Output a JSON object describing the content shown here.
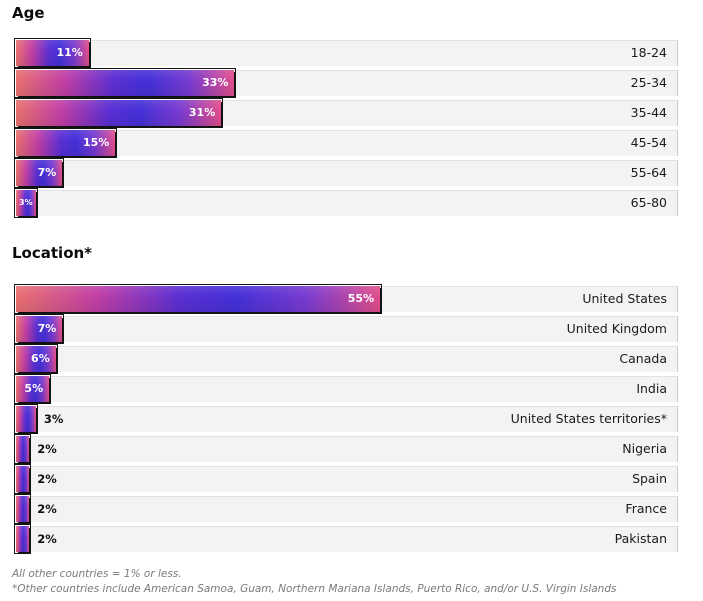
{
  "colors": {
    "bar_gradient": [
      "#e9716f",
      "#c23fa5",
      "#5c2fd3",
      "#4330d8",
      "#7a3bd0",
      "#e24f8c"
    ],
    "track": "#f3f3f3",
    "outline": "#141414"
  },
  "chart_data": [
    {
      "type": "bar",
      "orientation": "horizontal",
      "title": "Age",
      "categories": [
        "18-24",
        "25-34",
        "35-44",
        "45-54",
        "55-64",
        "65-80"
      ],
      "values": [
        11,
        33,
        31,
        15,
        7,
        3
      ],
      "value_labels": [
        "11%",
        "33%",
        "31%",
        "15%",
        "7%",
        "3%"
      ],
      "xlim": [
        0,
        100
      ],
      "grid": false,
      "legend": "none"
    },
    {
      "type": "bar",
      "orientation": "horizontal",
      "title": "Location*",
      "categories": [
        "United States",
        "United Kingdom",
        "Canada",
        "India",
        "United States territories*",
        "Nigeria",
        "Spain",
        "France",
        "Pakistan"
      ],
      "values": [
        55,
        7,
        6,
        5,
        3,
        2,
        2,
        2,
        2
      ],
      "value_labels": [
        "55%",
        "7%",
        "6%",
        "5%",
        "3%",
        "2%",
        "2%",
        "2%",
        "2%"
      ],
      "xlim": [
        0,
        100
      ],
      "grid": false,
      "legend": "none"
    }
  ],
  "footnotes": [
    "All other countries = 1% or less.",
    "*Other countries include American Samoa, Guam, Northern Mariana Islands, Puerto Rico, and/or U.S. Virgin Islands"
  ]
}
